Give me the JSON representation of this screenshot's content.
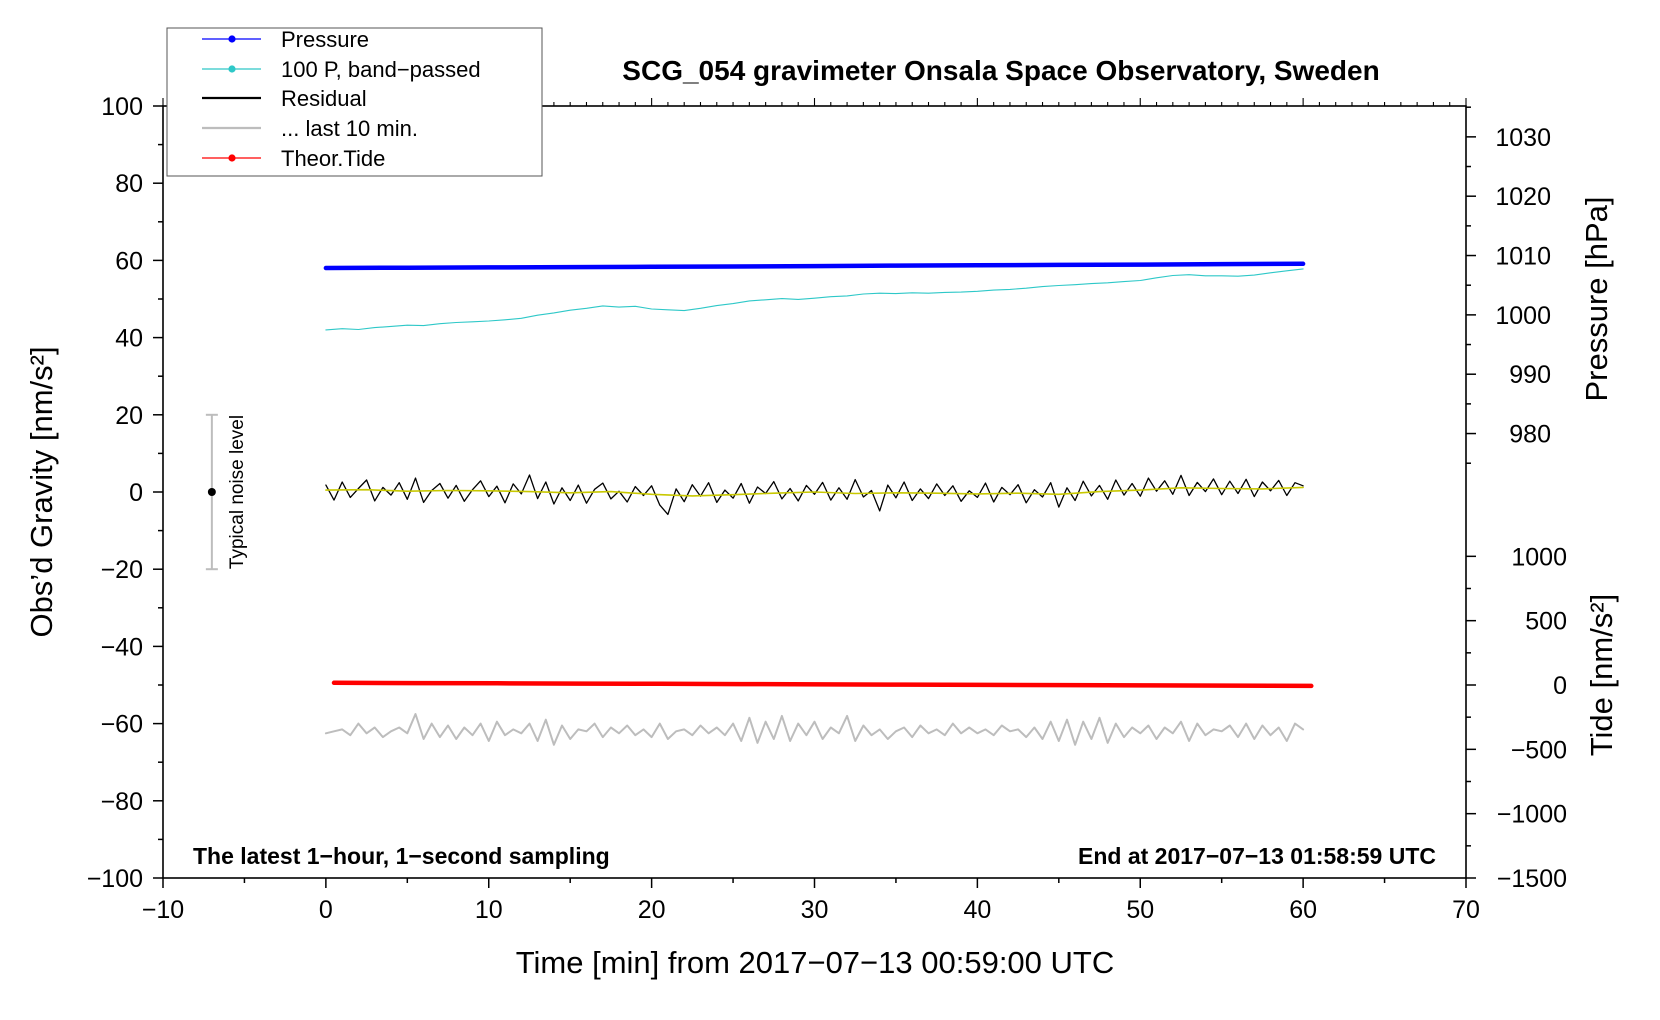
{
  "chart_data": {
    "type": "line",
    "title": "SCG_054 gravimeter Onsala Space Observatory, Sweden",
    "xlabel": "Time [min] from 2017−07−13 00:59:00 UTC",
    "ylabel": "Obs’d Gravity [nm/s²]",
    "xlim": [
      -10,
      70
    ],
    "ylim": [
      -100,
      100
    ],
    "x_ticks": [
      -10,
      0,
      10,
      20,
      30,
      40,
      50,
      60,
      70
    ],
    "x_tick_labels": [
      "−10",
      "0",
      "10",
      "20",
      "30",
      "40",
      "50",
      "60",
      "70"
    ],
    "y_ticks": [
      -100,
      -80,
      -60,
      -40,
      -20,
      0,
      20,
      40,
      60,
      80,
      100
    ],
    "y_tick_labels": [
      "−100",
      "−80",
      "−60",
      "−40",
      "−20",
      "0",
      "20",
      "40",
      "60",
      "80",
      "100"
    ],
    "right_axes": {
      "pressure": {
        "label": "Pressure [hPa]",
        "ylim": [
          905.1,
          1035.2
        ],
        "ticks": [
          980,
          990,
          1000,
          1010,
          1020,
          1030
        ],
        "tick_labels": [
          "980",
          "990",
          "1000",
          "1010",
          "1020",
          "1030"
        ]
      },
      "tide": {
        "label": "Tide [nm/s²]",
        "ylim": [
          -1500,
          4500
        ],
        "ticks": [
          -1500,
          -1000,
          -500,
          0,
          500,
          1000
        ],
        "tick_labels": [
          "−1500",
          "−1000",
          "−500",
          "0",
          "500",
          "1000"
        ]
      }
    },
    "legend": {
      "position": "top-left",
      "entries": [
        {
          "label": "Pressure",
          "color": "#0000ff",
          "marker": true
        },
        {
          "label": "100 P, band−passed",
          "color": "#2ec8c8",
          "marker": true
        },
        {
          "label": "Residual",
          "color": "#000000",
          "marker": false
        },
        {
          "label": "... last 10 min.",
          "color": "#bdbdbd",
          "marker": false
        },
        {
          "label": "Theor.Tide",
          "color": "#ff0000",
          "marker": true
        }
      ]
    },
    "series": {
      "pressure_axis": {
        "pressure": {
          "legend": 0,
          "x_start": 0,
          "x_step": 5,
          "values": [
            1007.9,
            1007.95,
            1008.0,
            1008.05,
            1008.1,
            1008.15,
            1008.22,
            1008.3,
            1008.36,
            1008.42,
            1008.48,
            1008.55,
            1008.6
          ]
        }
      },
      "gravity_axis": {
        "band_passed": {
          "legend": 1,
          "x_start": 0,
          "x_step": 1,
          "values": [
            42.0,
            42.3,
            42.1,
            42.6,
            42.9,
            43.2,
            43.1,
            43.6,
            43.9,
            44.1,
            44.3,
            44.6,
            45.0,
            45.8,
            46.4,
            47.1,
            47.6,
            48.2,
            47.9,
            48.1,
            47.4,
            47.2,
            47.0,
            47.6,
            48.3,
            48.8,
            49.5,
            49.8,
            50.1,
            49.9,
            50.2,
            50.6,
            50.8,
            51.3,
            51.5,
            51.4,
            51.6,
            51.5,
            51.7,
            51.8,
            52.0,
            52.3,
            52.5,
            52.8,
            53.2,
            53.5,
            53.7,
            54.0,
            54.2,
            54.5,
            54.8,
            55.5,
            56.1,
            56.3,
            56.0,
            56.0,
            55.9,
            56.2,
            56.8,
            57.3,
            57.8
          ]
        },
        "residual": {
          "legend": 2,
          "x_start": 0,
          "x_step": 0.5,
          "values": [
            1.8,
            -2.1,
            2.6,
            -1.4,
            0.9,
            3.1,
            -2.3,
            1.2,
            -0.8,
            2.4,
            -1.9,
            3.6,
            -2.7,
            0.4,
            2.2,
            -1.6,
            1.7,
            -2.4,
            0.6,
            2.9,
            -1.2,
            1.5,
            -2.8,
            2.1,
            -0.5,
            4.4,
            -1.7,
            2.6,
            -3.1,
            1.1,
            -2.2,
            1.8,
            -2.9,
            0.7,
            2.3,
            -1.8,
            0.2,
            -2.6,
            1.4,
            -0.9,
            1.6,
            -3.4,
            -5.8,
            0.8,
            -2.5,
            1.9,
            -1.1,
            2.4,
            -2.7,
            0.5,
            -1.6,
            2.2,
            -2.9,
            1.3,
            -0.4,
            2.7,
            -1.8,
            0.9,
            -2.3,
            1.7,
            -0.6,
            2.5,
            -2.1,
            1.1,
            -1.9,
            3.2,
            -1.3,
            0.4,
            -4.9,
            1.8,
            -1.5,
            2.6,
            -2.2,
            0.8,
            -1.7,
            2.1,
            -0.9,
            1.6,
            -2.4,
            0.3,
            -1.4,
            2.3,
            -2.6,
            1.2,
            -0.7,
            1.9,
            -2.8,
            0.6,
            -1.3,
            2.4,
            -3.9,
            1.1,
            -2.2,
            2.8,
            -1.0,
            1.7,
            -1.9,
            3.1,
            -0.8,
            2.2,
            -1.1,
            3.6,
            0.2,
            2.9,
            -0.6,
            4.3,
            -0.9,
            2.5,
            0.1,
            3.4,
            -0.7,
            2.8,
            -0.4,
            3.3,
            -1.2,
            2.6,
            0.3,
            3.0,
            -0.9,
            2.4,
            1.6
          ]
        },
        "residual_smoothed": {
          "color": "#c8c800",
          "x_start": 0,
          "x_step": 2.5,
          "values": [
            0.5,
            0.6,
            0.2,
            0.4,
            0.3,
            0.1,
            -0.2,
            0.1,
            -0.6,
            -1.0,
            -0.7,
            -0.3,
            0.0,
            -0.4,
            -0.2,
            -0.3,
            -0.5,
            -0.3,
            -0.6,
            0.1,
            0.5,
            1.1,
            0.9,
            0.8,
            1.2
          ]
        },
        "last_10_min": {
          "legend": 3,
          "x_start": 0,
          "x_step": 0.5,
          "values": [
            -62.5,
            -62.0,
            -61.5,
            -63.0,
            -60.0,
            -62.5,
            -61.0,
            -63.5,
            -62.0,
            -61.0,
            -62.5,
            -57.5,
            -64.0,
            -60.0,
            -63.5,
            -60.5,
            -64.0,
            -61.0,
            -63.0,
            -60.0,
            -64.5,
            -59.5,
            -63.0,
            -61.5,
            -62.5,
            -60.0,
            -64.5,
            -59.0,
            -65.5,
            -60.5,
            -64.0,
            -61.5,
            -62.0,
            -60.0,
            -63.5,
            -61.0,
            -62.5,
            -60.5,
            -63.0,
            -61.5,
            -63.5,
            -60.0,
            -64.0,
            -62.0,
            -61.5,
            -63.0,
            -60.5,
            -62.5,
            -61.0,
            -63.0,
            -60.0,
            -64.5,
            -58.5,
            -65.0,
            -59.5,
            -64.0,
            -58.0,
            -64.5,
            -60.0,
            -63.0,
            -59.5,
            -64.0,
            -61.0,
            -62.5,
            -58.0,
            -64.5,
            -60.5,
            -63.0,
            -61.5,
            -64.0,
            -62.0,
            -61.0,
            -63.5,
            -60.5,
            -62.5,
            -61.5,
            -63.0,
            -60.0,
            -62.5,
            -61.0,
            -62.5,
            -61.5,
            -63.0,
            -60.5,
            -62.0,
            -61.5,
            -63.5,
            -61.0,
            -64.0,
            -59.5,
            -64.5,
            -59.0,
            -65.5,
            -59.5,
            -64.0,
            -58.5,
            -65.0,
            -60.0,
            -63.5,
            -61.0,
            -62.5,
            -60.5,
            -64.0,
            -61.0,
            -62.5,
            -59.5,
            -64.5,
            -60.0,
            -63.0,
            -61.5,
            -62.0,
            -60.5,
            -63.5,
            -60.0,
            -64.0,
            -60.5,
            -63.0,
            -61.0,
            -64.5,
            -60.0,
            -61.5
          ]
        }
      },
      "tide_axis": {
        "theor_tide": {
          "legend": 4,
          "x_start": 0.5,
          "x_step": 5,
          "values": [
            17,
            15,
            13,
            11,
            9,
            7,
            5,
            3,
            1,
            -1,
            -3,
            -5,
            -7
          ]
        }
      }
    },
    "annotations": {
      "left_note": "The latest 1−hour, 1−second sampling",
      "right_note": "End at 2017−07−13 01:58:59 UTC",
      "noise_level": {
        "label": "Typical noise level",
        "color": "#bdbdbd",
        "x": -7,
        "range": [
          -20,
          20
        ],
        "center": 0
      }
    }
  }
}
